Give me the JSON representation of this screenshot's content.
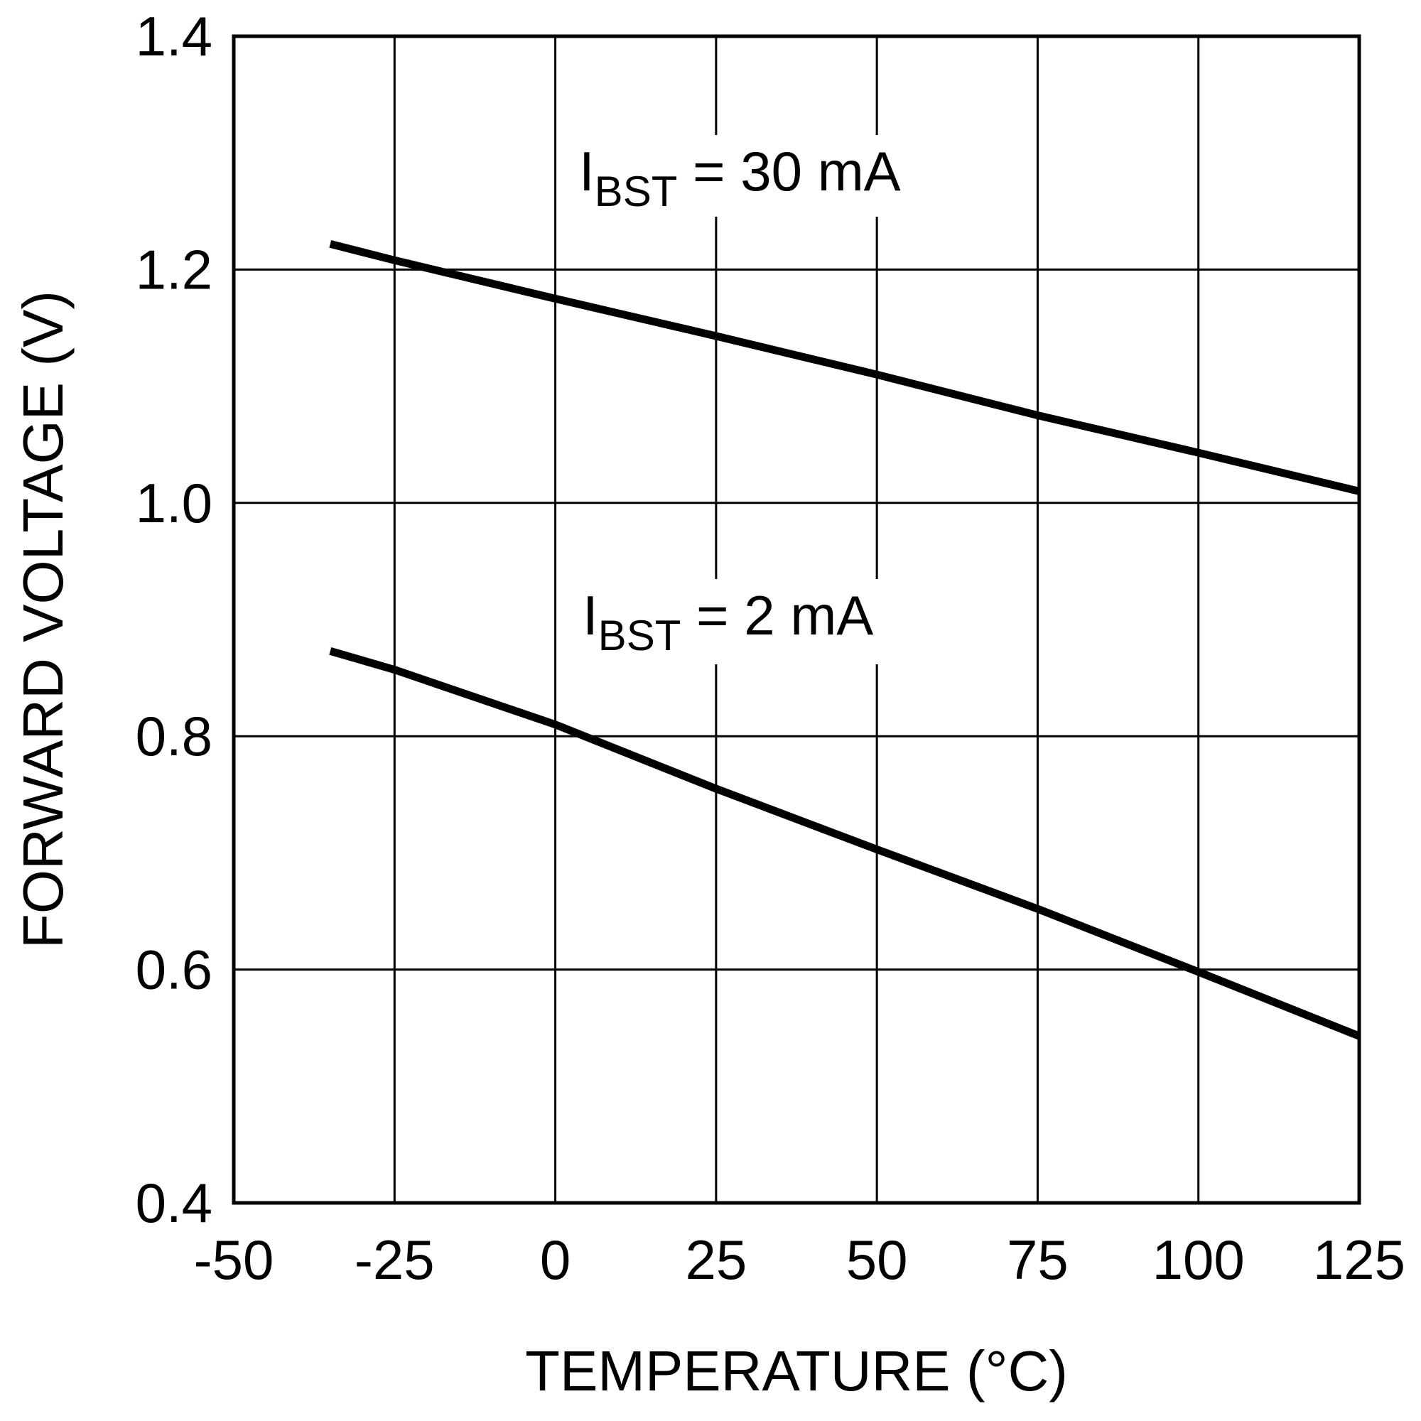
{
  "chart_data": {
    "type": "line",
    "title": "",
    "xlabel": "TEMPERATURE (°C)",
    "ylabel": "FORWARD VOLTAGE (V)",
    "xlim": [
      -50,
      125
    ],
    "ylim": [
      0.4,
      1.4
    ],
    "xticks": [
      "-50",
      "-25",
      "0",
      "25",
      "50",
      "75",
      "100",
      "125"
    ],
    "yticks": [
      "0.4",
      "0.6",
      "0.8",
      "1.0",
      "1.2",
      "1.4"
    ],
    "grid": true,
    "colors": {
      "line": "#000000",
      "grid": "#000000"
    },
    "series": [
      {
        "label_main": "I",
        "label_sub": "BST",
        "label_rest": " = 30 mA",
        "x": [
          -35,
          -25,
          0,
          25,
          50,
          75,
          100,
          125
        ],
        "y": [
          1.222,
          1.208,
          1.175,
          1.143,
          1.11,
          1.075,
          1.043,
          1.01
        ]
      },
      {
        "label_main": "I",
        "label_sub": "BST",
        "label_rest": " = 2 mA",
        "x": [
          -35,
          -25,
          0,
          25,
          50,
          75,
          100,
          125
        ],
        "y": [
          0.873,
          0.857,
          0.81,
          0.755,
          0.703,
          0.652,
          0.598,
          0.543
        ]
      }
    ]
  }
}
